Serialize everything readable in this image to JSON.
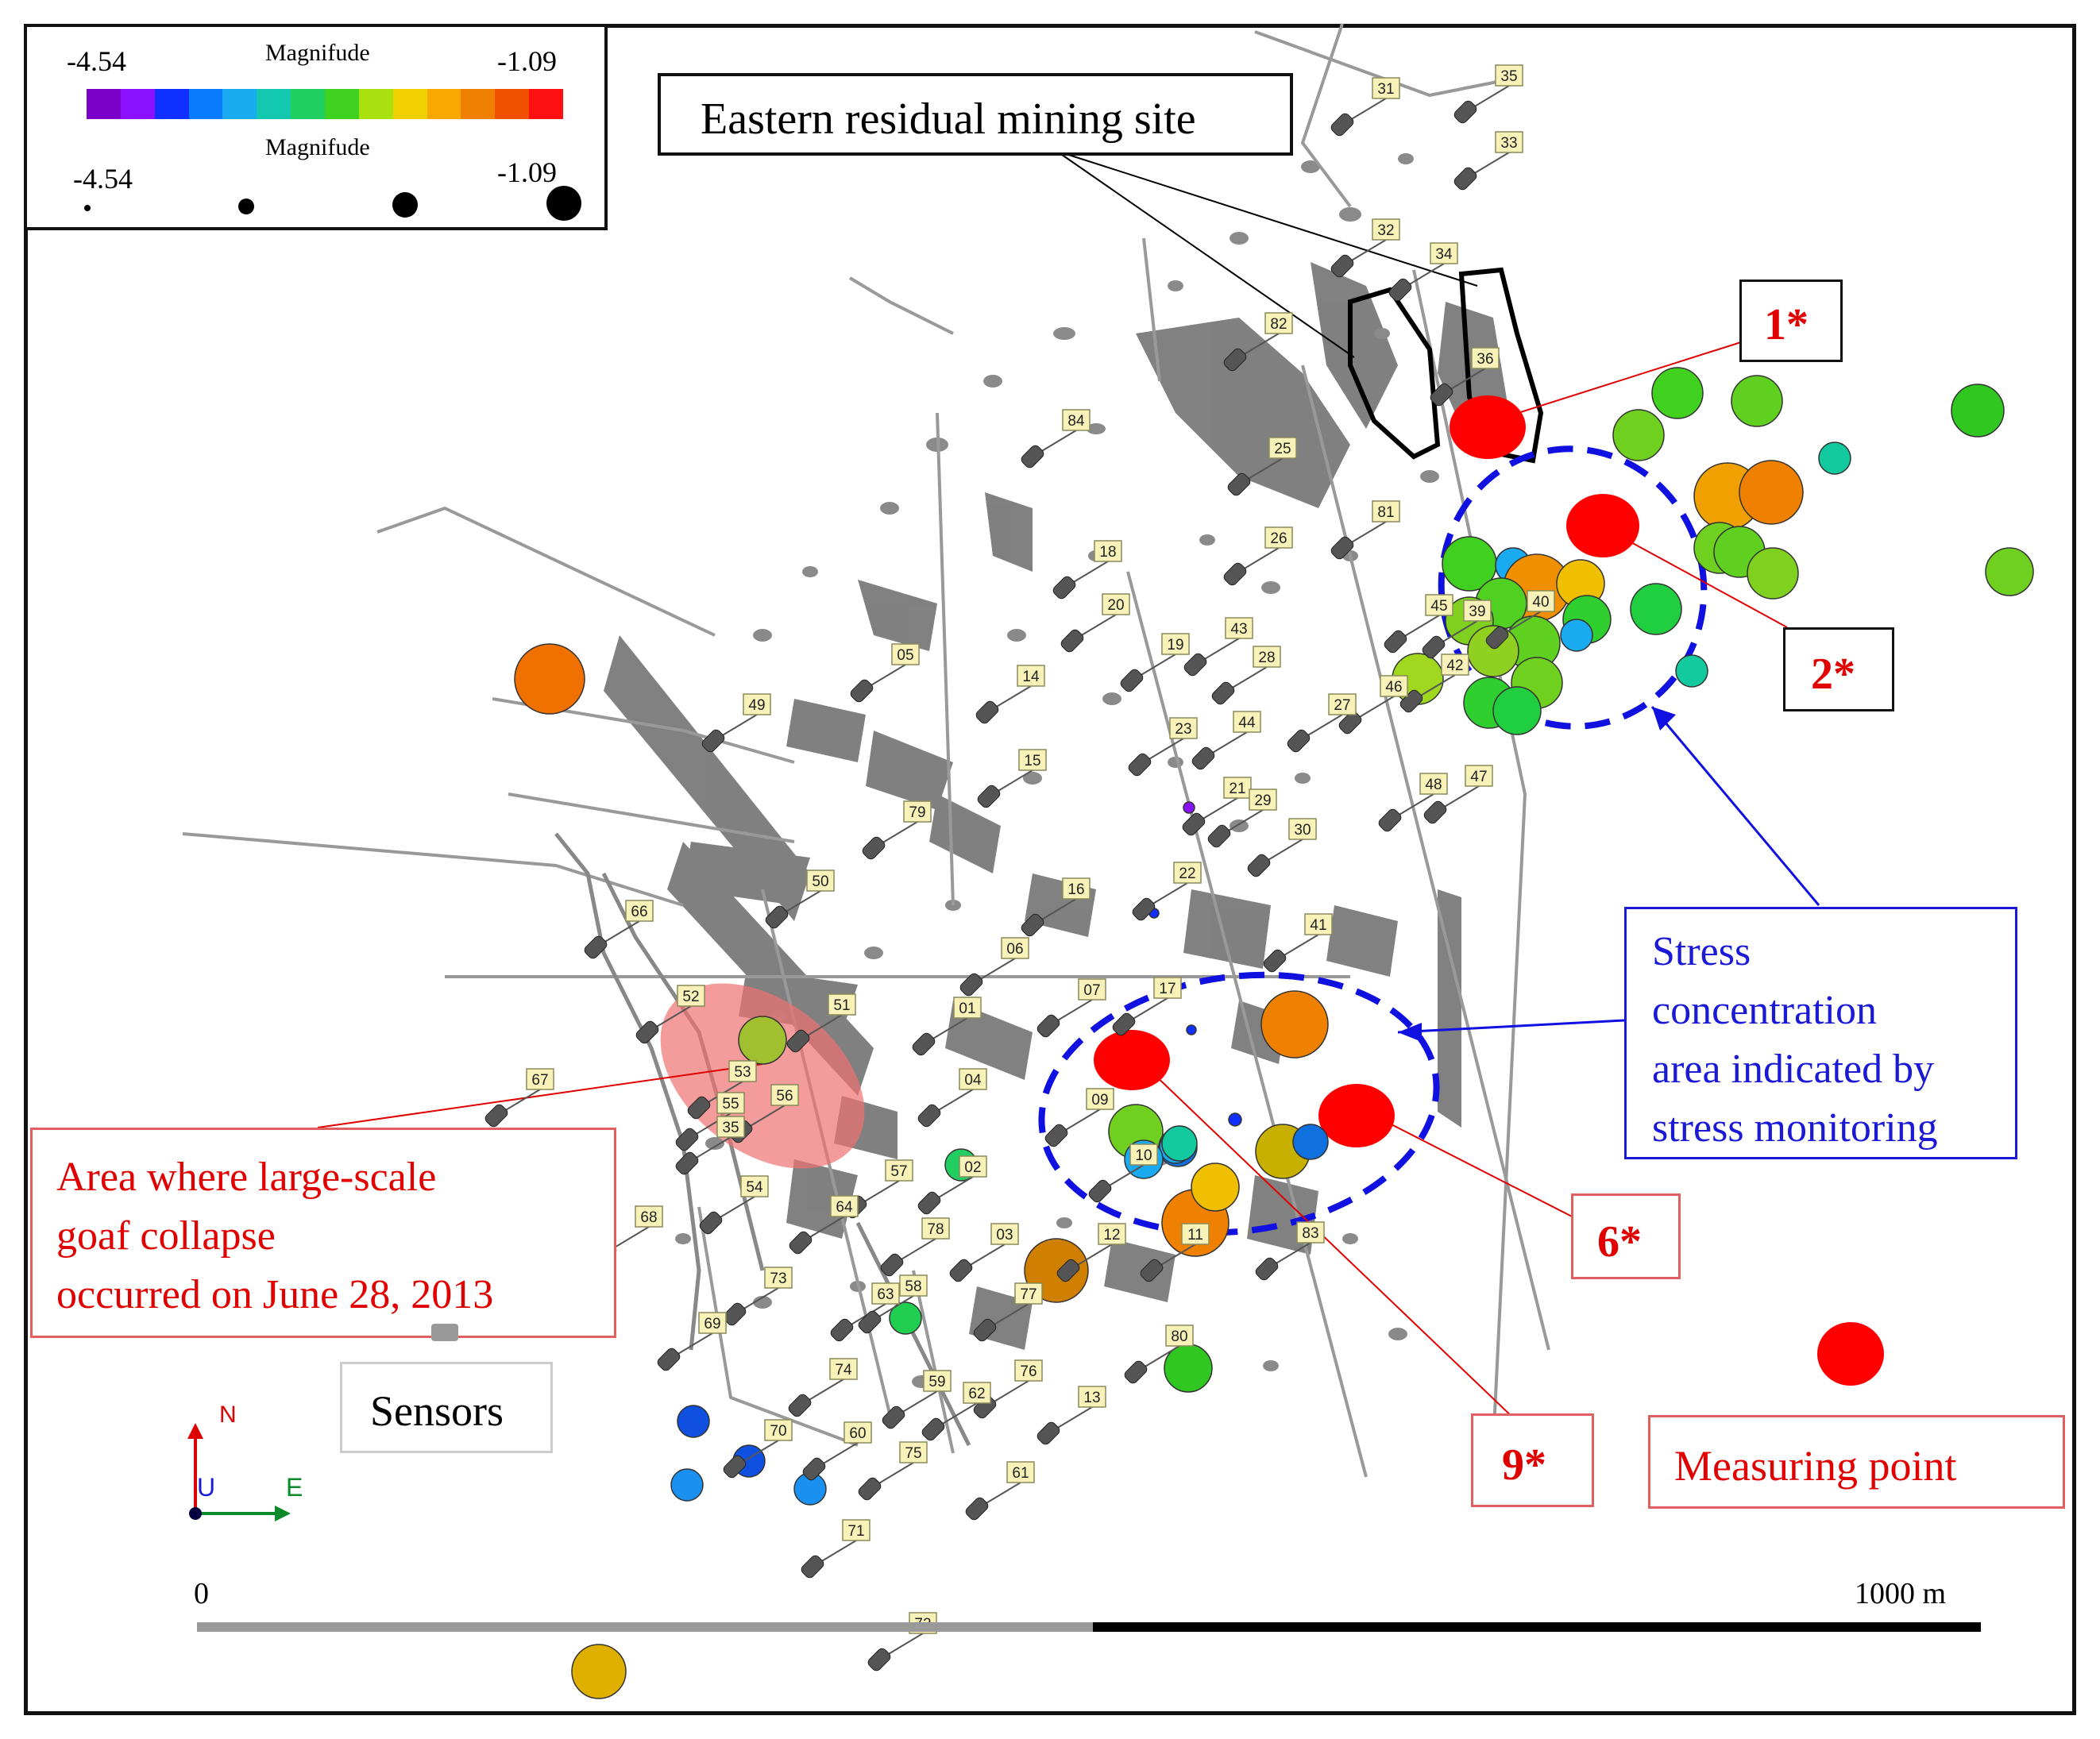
{
  "legend": {
    "color_title": "Magnifude",
    "size_title": "Magnifude",
    "min": "-4.54",
    "max": "-1.09",
    "color_scale": [
      "#7a00c8",
      "#8a10ff",
      "#1030ff",
      "#0a7aff",
      "#1aaaf0",
      "#12c9b0",
      "#20cf60",
      "#40d020",
      "#a8e010",
      "#f0d000",
      "#f8a800",
      "#f08000",
      "#f05000",
      "#ff1010"
    ]
  },
  "callouts": {
    "eastern": "Eastern residual mining site",
    "goaf": [
      "Area where large-scale",
      "goaf collapse",
      "occurred on June 28, 2013"
    ],
    "stress": [
      "Stress",
      "concentration",
      "area indicated by",
      "stress monitoring"
    ],
    "sensors": "Sensors",
    "measuring": "Measuring point"
  },
  "points": {
    "p1": "1*",
    "p2": "2*",
    "p6": "6*",
    "p9": "9*"
  },
  "compass": {
    "n": "N",
    "u": "U",
    "e": "E"
  },
  "scale": {
    "start": "0",
    "end": "1000 m"
  },
  "sensor_ids": [
    "31",
    "35",
    "33",
    "32",
    "34",
    "82",
    "36",
    "84",
    "25",
    "81",
    "26",
    "18",
    "20",
    "43",
    "19",
    "28",
    "05",
    "14",
    "45",
    "39",
    "40",
    "42",
    "46",
    "27",
    "44",
    "23",
    "49",
    "15",
    "48",
    "47",
    "21",
    "29",
    "79",
    "30",
    "22",
    "16",
    "50",
    "66",
    "06",
    "41",
    "17",
    "01",
    "07",
    "52",
    "51",
    "67",
    "53",
    "55",
    "56",
    "04",
    "09",
    "10",
    "02",
    "57",
    "54",
    "35",
    "64",
    "68",
    "78",
    "03",
    "12",
    "11",
    "83",
    "73",
    "63",
    "58",
    "77",
    "69",
    "74",
    "80",
    "76",
    "59",
    "62",
    "13",
    "70",
    "60",
    "75",
    "61",
    "71",
    "72"
  ]
}
